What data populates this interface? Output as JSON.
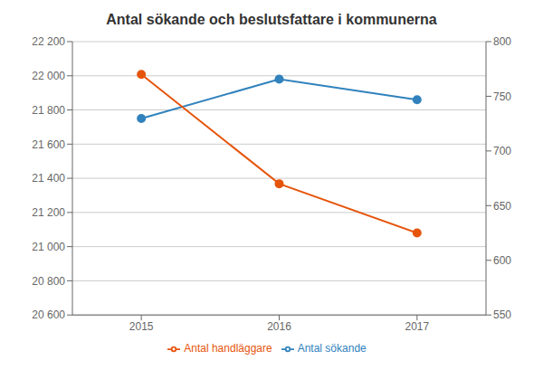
{
  "chart_data": {
    "type": "line",
    "title": "Antal sökande och beslutsfattare i kommunerna",
    "x": [
      2015,
      2016,
      2017
    ],
    "xlim": [
      2014.5,
      2017.5
    ],
    "xticks": [
      2015,
      2016,
      2017
    ],
    "ylim": [
      20600,
      22200
    ],
    "yticks": [
      {
        "value": 20600,
        "label": "20 600"
      },
      {
        "value": 20800,
        "label": "20 800"
      },
      {
        "value": 21000,
        "label": "21 000"
      },
      {
        "value": 21200,
        "label": "21 200"
      },
      {
        "value": 21400,
        "label": "21 400"
      },
      {
        "value": 21600,
        "label": "21 600"
      },
      {
        "value": 21800,
        "label": "21 800"
      },
      {
        "value": 22000,
        "label": "22 000"
      },
      {
        "value": 22200,
        "label": "22 200"
      }
    ],
    "y2lim": [
      550,
      800
    ],
    "y2ticks": [
      550,
      600,
      650,
      700,
      750,
      800
    ],
    "grid": true,
    "legend": "bottom",
    "series": [
      {
        "name": "Antal sökande",
        "values": [
          21750,
          21980,
          21860
        ],
        "color": "#3182bd",
        "marker": "circle"
      },
      {
        "name": "Antal handläggare",
        "values": [
          770,
          670,
          625
        ],
        "color": "#e6550d",
        "marker": "circle",
        "axis": "y2"
      }
    ]
  }
}
